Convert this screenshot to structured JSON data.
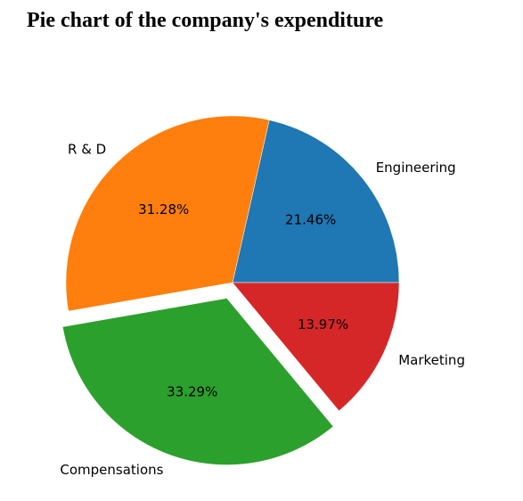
{
  "chart_data": {
    "type": "pie",
    "title": "Pie chart of the company's expenditure",
    "categories": [
      "Engineering",
      "R & D",
      "Compensations",
      "Marketing"
    ],
    "values": [
      21.46,
      31.28,
      33.29,
      13.97
    ],
    "value_labels": [
      "21.46%",
      "31.28%",
      "33.29%",
      "13.97%"
    ],
    "colors": [
      "#1f77b4",
      "#ff7f0e",
      "#2ca02c",
      "#d62728"
    ],
    "explode": [
      0,
      0,
      0.1,
      0
    ]
  }
}
